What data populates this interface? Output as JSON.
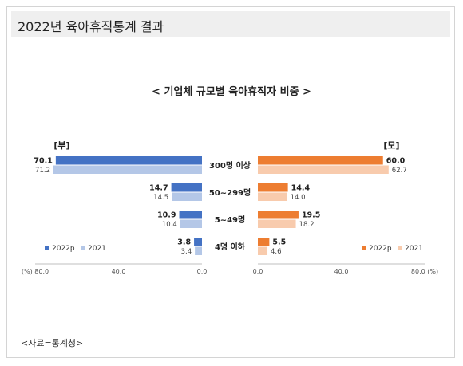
{
  "header": {
    "title": "2022년 육아휴직통계 결과"
  },
  "source": "<자료=통계청>",
  "chart_data": {
    "type": "bar",
    "title": "< 기업체 규모별 육아휴직자 비중 >",
    "categories": [
      "300명 이상",
      "50~299명",
      "5~49명",
      "4명 이하"
    ],
    "panels": [
      {
        "name": "[부]",
        "direction": "left",
        "xlim": [
          0,
          80
        ],
        "ticks": [
          "(%) 80.0",
          "40.0",
          "0.0"
        ],
        "series": [
          {
            "name": "2022p",
            "color": "#4472c4",
            "values": [
              70.1,
              14.7,
              10.9,
              3.8
            ],
            "labels": [
              "70.1",
              "14.7",
              "10.9",
              "3.8"
            ]
          },
          {
            "name": "2021",
            "color": "#b4c7e7",
            "values": [
              71.2,
              14.5,
              10.4,
              3.4
            ],
            "labels": [
              "71.2",
              "14.5",
              "10.4",
              "3.4"
            ]
          }
        ]
      },
      {
        "name": "[모]",
        "direction": "right",
        "xlim": [
          0,
          80
        ],
        "ticks": [
          "0.0",
          "40.0",
          "80.0 (%)"
        ],
        "series": [
          {
            "name": "2022p",
            "color": "#ed7d31",
            "values": [
              60.0,
              14.4,
              19.5,
              5.5
            ],
            "labels": [
              "60.0",
              "14.4",
              "19.5",
              "5.5"
            ]
          },
          {
            "name": "2021",
            "color": "#f8cbad",
            "values": [
              62.7,
              14.0,
              18.2,
              4.6
            ],
            "labels": [
              "62.7",
              "14.0",
              "18.2",
              "4.6"
            ]
          }
        ]
      }
    ],
    "legend_placement": "bottom inside each panel",
    "grid": false
  }
}
